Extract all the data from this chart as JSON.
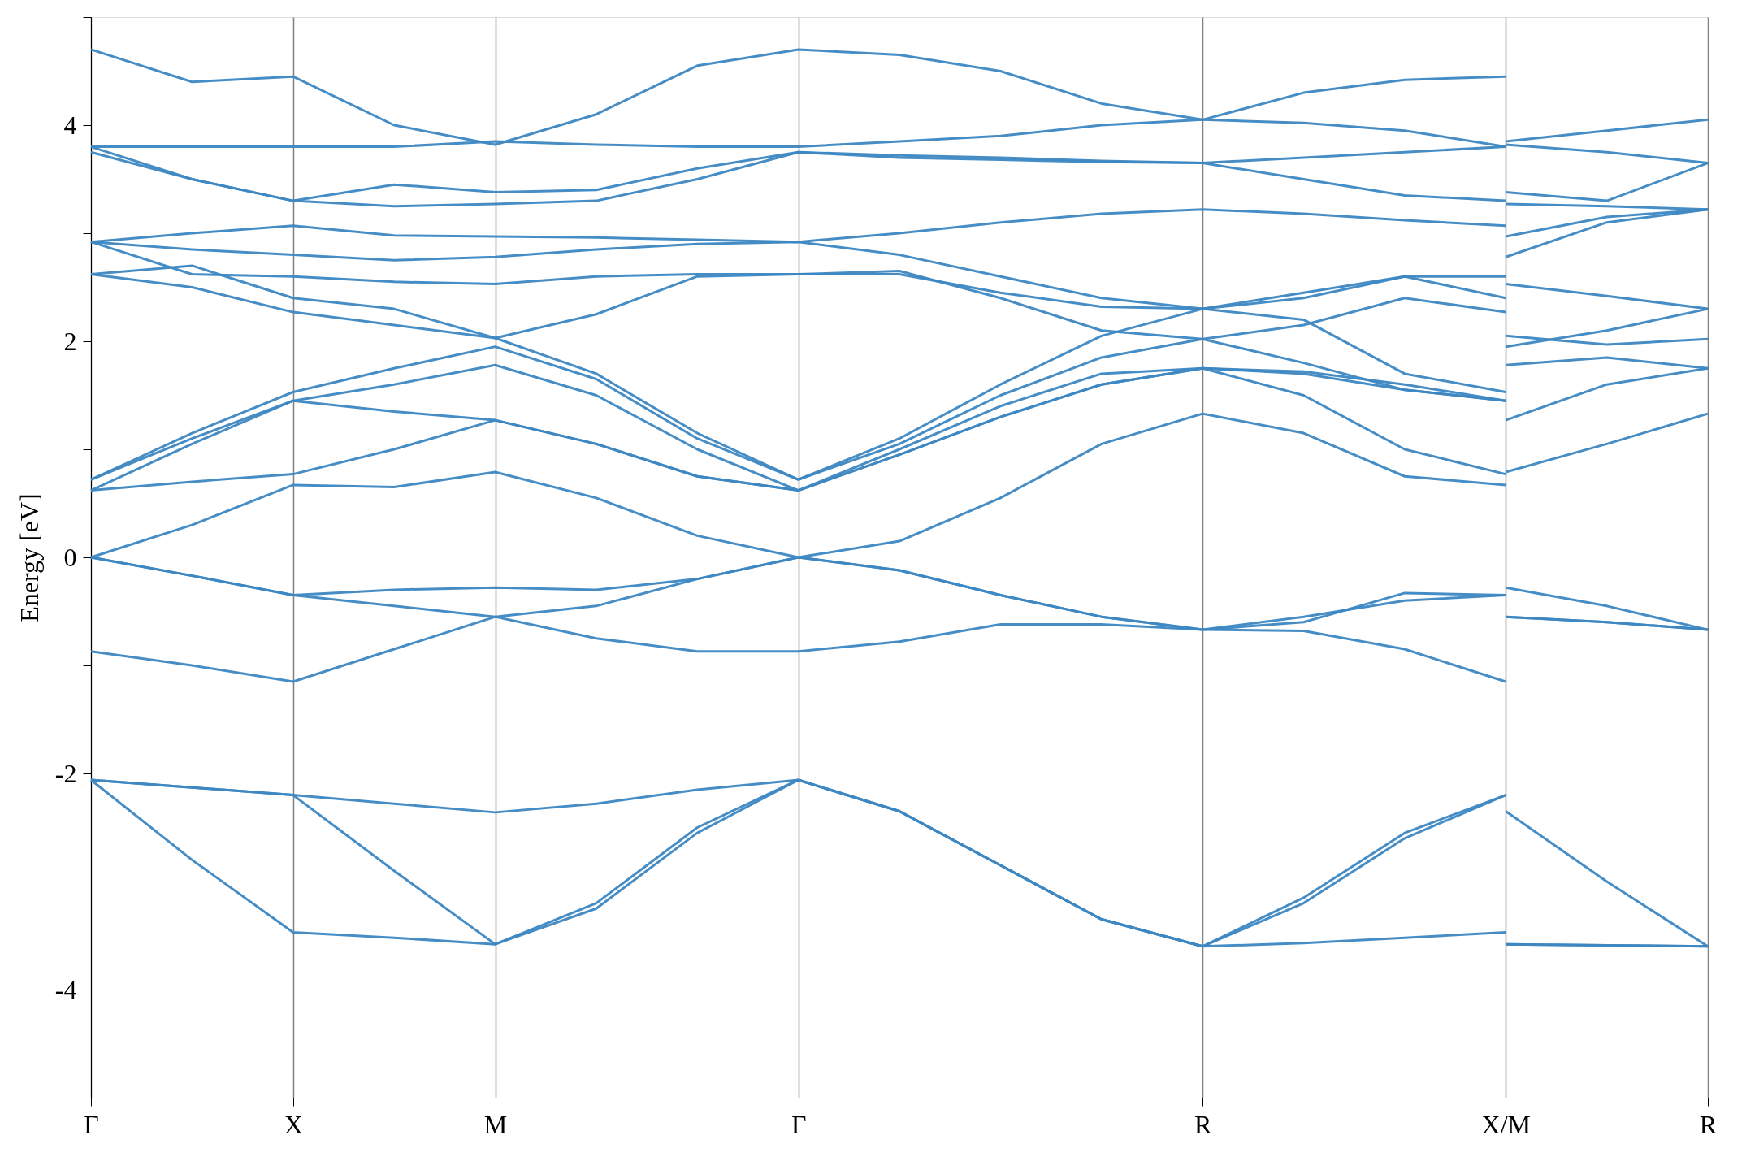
{
  "chart_data": {
    "type": "line",
    "ylabel": "Energy [eV]",
    "categories": [
      "Γ",
      null,
      "X",
      null,
      "M",
      null,
      null,
      "Γ",
      null,
      null,
      null,
      "R",
      null,
      null,
      "X/M",
      null,
      "R"
    ],
    "ylim": [
      -5,
      5
    ],
    "yticks": [
      {
        "value": -5,
        "label": null
      },
      -4,
      {
        "value": -3,
        "label": null
      },
      -2,
      {
        "value": -1,
        "label": null
      },
      0,
      {
        "value": 1,
        "label": null
      },
      2,
      {
        "value": 3,
        "label": null
      },
      4,
      {
        "value": 5,
        "label": null
      }
    ],
    "grid": "x",
    "legend": false,
    "marker": "none",
    "line_style": "solid",
    "series": [
      {
        "color": "#3d87c2",
        "values": [
          -2.06,
          -2.8,
          -3.47,
          -3.52,
          -3.58,
          -3.2,
          -2.5,
          -2.06,
          -2.35,
          -2.85,
          -3.35,
          -3.6,
          -3.57,
          -3.52,
          -3.47,
          null,
          null
        ]
      },
      {
        "color": "#3d87c2",
        "values": [
          -2.06,
          -2.13,
          -2.2,
          -2.9,
          -3.58,
          -3.25,
          -2.55,
          -2.06,
          -2.35,
          -2.85,
          -3.35,
          -3.6,
          -3.2,
          -2.6,
          -2.2,
          null,
          null
        ]
      },
      {
        "color": "#3d87c2",
        "values": [
          -2.06,
          -2.13,
          -2.2,
          -2.28,
          -2.36,
          -2.28,
          -2.15,
          -2.06,
          -2.35,
          -2.85,
          -3.35,
          -3.6,
          -3.15,
          -2.55,
          -2.2,
          null,
          null
        ]
      },
      {
        "color": "#3d87c2",
        "values": [
          -0.87,
          -1.0,
          -1.15,
          -0.85,
          -0.55,
          -0.45,
          -0.2,
          0,
          -0.12,
          -0.35,
          -0.55,
          -0.67,
          -0.55,
          -0.4,
          -0.35,
          null,
          null
        ]
      },
      {
        "color": "#3d87c2",
        "values": [
          0,
          -0.17,
          -0.35,
          -0.45,
          -0.55,
          -0.75,
          -0.87,
          -0.87,
          -0.78,
          -0.62,
          -0.62,
          -0.67,
          -0.68,
          -0.85,
          -1.15,
          null,
          null
        ]
      },
      {
        "color": "#3d87c2",
        "values": [
          0,
          -0.17,
          -0.35,
          -0.3,
          -0.28,
          -0.3,
          -0.2,
          0,
          -0.12,
          -0.35,
          -0.55,
          -0.67,
          -0.6,
          -0.33,
          -0.35,
          null,
          null
        ]
      },
      {
        "color": "#3d87c2",
        "values": [
          0,
          0.3,
          0.67,
          0.65,
          0.79,
          0.55,
          0.2,
          0,
          0.15,
          0.55,
          1.05,
          1.33,
          1.15,
          0.75,
          0.67,
          null,
          null
        ]
      },
      {
        "color": "#3d87c2",
        "values": [
          0.62,
          0.7,
          0.77,
          1.0,
          1.27,
          1.05,
          0.75,
          0.62,
          0.95,
          1.3,
          1.6,
          1.75,
          1.5,
          1.0,
          0.77,
          null,
          null
        ]
      },
      {
        "color": "#3d87c2",
        "values": [
          0.62,
          1.05,
          1.45,
          1.35,
          1.27,
          1.05,
          0.75,
          0.62,
          0.95,
          1.3,
          1.6,
          1.75,
          1.72,
          1.6,
          1.45,
          null,
          null
        ]
      },
      {
        "color": "#3d87c2",
        "values": [
          0.72,
          1.1,
          1.45,
          1.6,
          1.78,
          1.5,
          1.0,
          0.62,
          1.0,
          1.4,
          1.7,
          1.75,
          1.7,
          1.55,
          1.45,
          null,
          null
        ]
      },
      {
        "color": "#3d87c2",
        "values": [
          0.72,
          1.15,
          1.53,
          1.75,
          1.95,
          1.65,
          1.1,
          0.72,
          1.1,
          1.6,
          2.05,
          2.3,
          2.2,
          1.7,
          1.53,
          null,
          null
        ]
      },
      {
        "color": "#3d87c2",
        "values": [
          2.62,
          2.5,
          2.27,
          2.15,
          2.03,
          1.7,
          1.15,
          0.72,
          1.05,
          1.5,
          1.85,
          2.02,
          1.8,
          1.55,
          1.45,
          null,
          null
        ]
      },
      {
        "color": "#3d87c2",
        "values": [
          2.62,
          2.7,
          2.4,
          2.3,
          2.03,
          2.25,
          2.6,
          2.62,
          2.65,
          2.4,
          2.1,
          2.02,
          2.15,
          2.4,
          2.27,
          null,
          null
        ]
      },
      {
        "color": "#3d87c2",
        "values": [
          2.92,
          2.62,
          2.6,
          2.55,
          2.53,
          2.6,
          2.62,
          2.62,
          2.62,
          2.45,
          2.32,
          2.3,
          2.45,
          2.6,
          2.4,
          null,
          null
        ]
      },
      {
        "color": "#3d87c2",
        "values": [
          2.92,
          2.85,
          2.8,
          2.75,
          2.78,
          2.85,
          2.9,
          2.92,
          2.8,
          2.6,
          2.4,
          2.3,
          2.4,
          2.6,
          2.6,
          null,
          null
        ]
      },
      {
        "color": "#3d87c2",
        "values": [
          2.92,
          3.0,
          3.07,
          2.98,
          2.97,
          2.96,
          2.94,
          2.92,
          3.0,
          3.1,
          3.18,
          3.22,
          3.18,
          3.12,
          3.07,
          null,
          null
        ]
      },
      {
        "color": "#3d87c2",
        "values": [
          3.75,
          3.5,
          3.3,
          3.25,
          3.27,
          3.3,
          3.5,
          3.75,
          3.72,
          3.7,
          3.67,
          3.65,
          3.5,
          3.35,
          3.3,
          null,
          null
        ]
      },
      {
        "color": "#3d87c2",
        "values": [
          3.8,
          3.5,
          3.3,
          3.45,
          3.38,
          3.4,
          3.6,
          3.75,
          3.7,
          3.68,
          3.66,
          3.65,
          3.7,
          3.75,
          3.8,
          null,
          null
        ]
      },
      {
        "color": "#3d87c2",
        "values": [
          3.8,
          3.8,
          3.8,
          3.8,
          3.85,
          3.82,
          3.8,
          3.8,
          3.85,
          3.9,
          4.0,
          4.05,
          4.3,
          4.42,
          4.45,
          null,
          null
        ]
      },
      {
        "color": "#3d87c2",
        "values": [
          4.7,
          4.4,
          4.45,
          4.0,
          3.82,
          4.1,
          4.55,
          4.7,
          4.65,
          4.5,
          4.2,
          4.05,
          4.02,
          3.95,
          3.8,
          null,
          null
        ]
      },
      {
        "color": "#3d87c2",
        "values": [
          null,
          null,
          null,
          null,
          null,
          null,
          null,
          null,
          null,
          null,
          null,
          null,
          null,
          null,
          -3.58,
          -3.59,
          -3.6
        ]
      },
      {
        "color": "#3d87c2",
        "values": [
          null,
          null,
          null,
          null,
          null,
          null,
          null,
          null,
          null,
          null,
          null,
          null,
          null,
          null,
          -3.58,
          -3.59,
          -3.6
        ]
      },
      {
        "color": "#3d87c2",
        "values": [
          null,
          null,
          null,
          null,
          null,
          null,
          null,
          null,
          null,
          null,
          null,
          null,
          null,
          null,
          -2.35,
          -3.0,
          -3.6
        ]
      },
      {
        "color": "#3d87c2",
        "values": [
          null,
          null,
          null,
          null,
          null,
          null,
          null,
          null,
          null,
          null,
          null,
          null,
          null,
          null,
          -0.55,
          -0.6,
          -0.67
        ]
      },
      {
        "color": "#3d87c2",
        "values": [
          null,
          null,
          null,
          null,
          null,
          null,
          null,
          null,
          null,
          null,
          null,
          null,
          null,
          null,
          -0.55,
          -0.6,
          -0.67
        ]
      },
      {
        "color": "#3d87c2",
        "values": [
          null,
          null,
          null,
          null,
          null,
          null,
          null,
          null,
          null,
          null,
          null,
          null,
          null,
          null,
          -0.28,
          -0.45,
          -0.67
        ]
      },
      {
        "color": "#3d87c2",
        "values": [
          null,
          null,
          null,
          null,
          null,
          null,
          null,
          null,
          null,
          null,
          null,
          null,
          null,
          null,
          0.79,
          1.05,
          1.33
        ]
      },
      {
        "color": "#3d87c2",
        "values": [
          null,
          null,
          null,
          null,
          null,
          null,
          null,
          null,
          null,
          null,
          null,
          null,
          null,
          null,
          1.27,
          1.6,
          1.75
        ]
      },
      {
        "color": "#3d87c2",
        "values": [
          null,
          null,
          null,
          null,
          null,
          null,
          null,
          null,
          null,
          null,
          null,
          null,
          null,
          null,
          1.78,
          1.85,
          1.75
        ]
      },
      {
        "color": "#3d87c2",
        "values": [
          null,
          null,
          null,
          null,
          null,
          null,
          null,
          null,
          null,
          null,
          null,
          null,
          null,
          null,
          1.95,
          2.1,
          2.3
        ]
      },
      {
        "color": "#3d87c2",
        "values": [
          null,
          null,
          null,
          null,
          null,
          null,
          null,
          null,
          null,
          null,
          null,
          null,
          null,
          null,
          2.05,
          1.97,
          2.02
        ]
      },
      {
        "color": "#3d87c2",
        "values": [
          null,
          null,
          null,
          null,
          null,
          null,
          null,
          null,
          null,
          null,
          null,
          null,
          null,
          null,
          2.53,
          2.42,
          2.3
        ]
      },
      {
        "color": "#3d87c2",
        "values": [
          null,
          null,
          null,
          null,
          null,
          null,
          null,
          null,
          null,
          null,
          null,
          null,
          null,
          null,
          2.78,
          3.1,
          3.22
        ]
      },
      {
        "color": "#3d87c2",
        "values": [
          null,
          null,
          null,
          null,
          null,
          null,
          null,
          null,
          null,
          null,
          null,
          null,
          null,
          null,
          2.97,
          3.15,
          3.22
        ]
      },
      {
        "color": "#3d87c2",
        "values": [
          null,
          null,
          null,
          null,
          null,
          null,
          null,
          null,
          null,
          null,
          null,
          null,
          null,
          null,
          3.27,
          3.25,
          3.22
        ]
      },
      {
        "color": "#3d87c2",
        "values": [
          null,
          null,
          null,
          null,
          null,
          null,
          null,
          null,
          null,
          null,
          null,
          null,
          null,
          null,
          3.38,
          3.3,
          3.65
        ]
      },
      {
        "color": "#3d87c2",
        "values": [
          null,
          null,
          null,
          null,
          null,
          null,
          null,
          null,
          null,
          null,
          null,
          null,
          null,
          null,
          3.82,
          3.75,
          3.65
        ]
      },
      {
        "color": "#3d87c2",
        "values": [
          null,
          null,
          null,
          null,
          null,
          null,
          null,
          null,
          null,
          null,
          null,
          null,
          null,
          null,
          3.85,
          3.95,
          4.05
        ]
      }
    ]
  }
}
